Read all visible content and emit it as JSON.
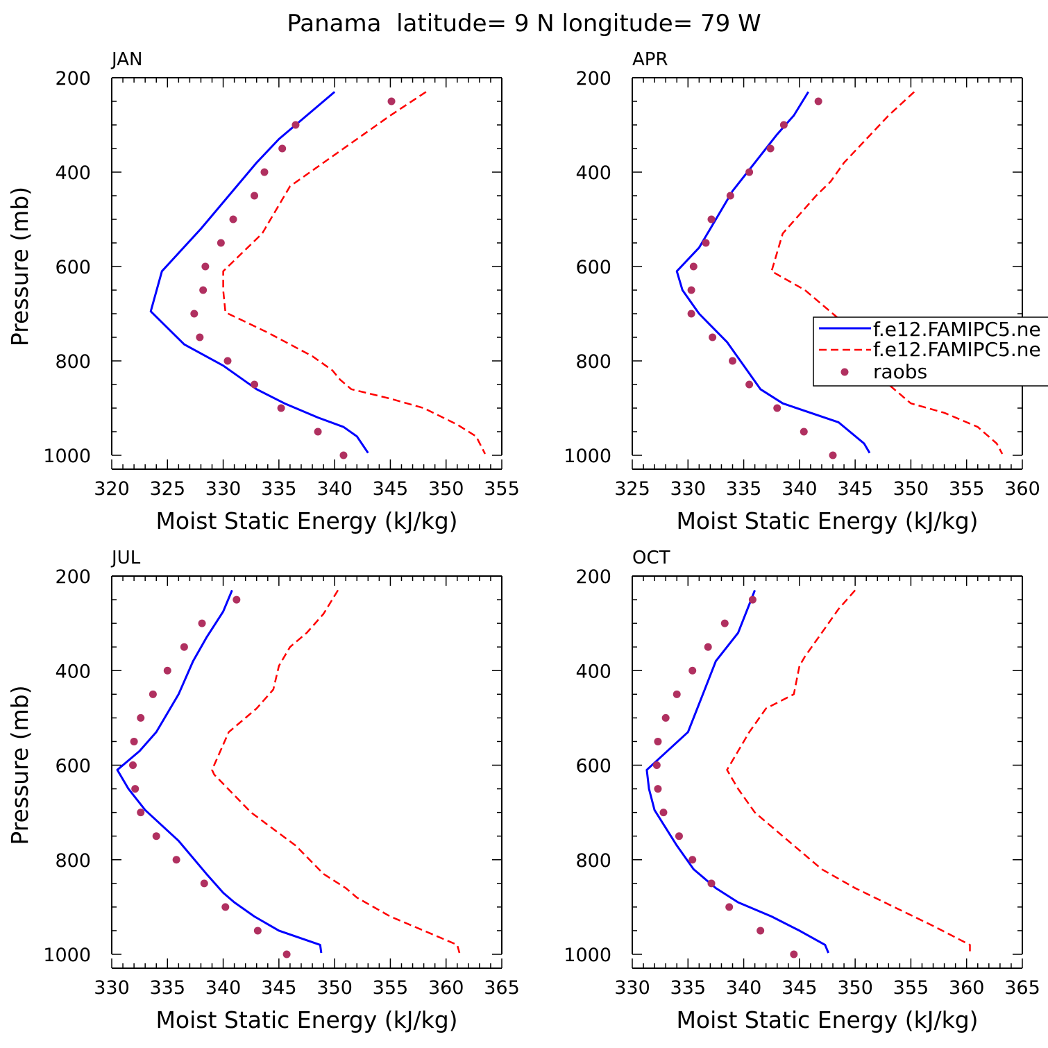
{
  "figure_title": "Panama  latitude= 9 N longitude= 79 W",
  "legend": {
    "entries": [
      {
        "label": "f.e12.FAMIPC5.ne",
        "style": "solid",
        "color": "#0000ff"
      },
      {
        "label": "f.e12.FAMIPC5.ne",
        "style": "dashed",
        "color": "#ff0000"
      },
      {
        "label": "raobs",
        "style": "dot",
        "color": "#b03060"
      }
    ]
  },
  "colors": {
    "model_solid": "#0000ff",
    "model_dashed": "#ff0000",
    "raobs": "#b03060"
  },
  "chart_data": [
    {
      "type": "line",
      "title": "JAN",
      "xlabel": "Moist Static Energy (kJ/kg)",
      "ylabel": "Pressure (mb)",
      "xlim": [
        320,
        355
      ],
      "xticks": [
        320,
        325,
        330,
        335,
        340,
        345,
        350,
        355
      ],
      "ylim": [
        200,
        1000
      ],
      "yticks": [
        200,
        400,
        600,
        800,
        1000
      ],
      "series": [
        {
          "name": "f.e12.FAMIPC5.ne",
          "style": "solid",
          "x": [
            340.0,
            338.0,
            335.0,
            333.0,
            330.5,
            328.0,
            324.5,
            323.5,
            326.5,
            330.0,
            333.0,
            335.5,
            338.5,
            340.8,
            342.0,
            343.0
          ],
          "y": [
            230,
            270,
            330,
            380,
            450,
            520,
            610,
            695,
            765,
            810,
            860,
            890,
            920,
            940,
            960,
            995
          ]
        },
        {
          "name": "f.e12.FAMIPC5.ne",
          "style": "dashed",
          "x": [
            348.2,
            345.0,
            342.0,
            339.0,
            336.0,
            333.5,
            330.0,
            330.0,
            330.2,
            334.0,
            338.0,
            339.8,
            340.5,
            341.5,
            345.0,
            348.0,
            351.0,
            352.7,
            353.5
          ],
          "y": [
            230,
            280,
            330,
            380,
            430,
            530,
            610,
            650,
            697,
            740,
            790,
            820,
            840,
            860,
            880,
            900,
            935,
            960,
            997
          ]
        },
        {
          "name": "raobs",
          "style": "dot",
          "x": [
            345.1,
            336.5,
            335.3,
            333.7,
            332.8,
            330.9,
            329.8,
            328.4,
            328.2,
            327.4,
            327.9,
            330.4,
            332.8,
            335.2,
            338.5,
            340.8
          ],
          "y": [
            250,
            300,
            350,
            400,
            450,
            500,
            550,
            600,
            650,
            700,
            750,
            800,
            850,
            900,
            950,
            1000
          ]
        }
      ]
    },
    {
      "type": "line",
      "title": "APR",
      "xlabel": "Moist Static Energy (kJ/kg)",
      "ylabel": "",
      "xlim": [
        325,
        360
      ],
      "xticks": [
        325,
        330,
        335,
        340,
        345,
        350,
        355,
        360
      ],
      "ylim": [
        200,
        1000
      ],
      "yticks": [
        200,
        400,
        600,
        800,
        1000
      ],
      "series": [
        {
          "name": "f.e12.FAMIPC5.ne",
          "style": "solid",
          "x": [
            340.8,
            339.5,
            338.0,
            336.0,
            334.0,
            332.0,
            331.0,
            329.0,
            329.5,
            331.0,
            333.5,
            335.0,
            336.5,
            338.5,
            341.0,
            343.5,
            345.8,
            346.3
          ],
          "y": [
            230,
            280,
            320,
            380,
            440,
            520,
            560,
            610,
            650,
            700,
            760,
            810,
            860,
            890,
            910,
            930,
            975,
            995
          ]
        },
        {
          "name": "f.e12.FAMIPC5.ne",
          "style": "dashed",
          "x": [
            350.3,
            348.0,
            346.0,
            344.0,
            342.8,
            341.5,
            338.5,
            337.5,
            340.5,
            343.0,
            345.0,
            346.5,
            347.5,
            349.0,
            350.0,
            353.0,
            356.0,
            357.7,
            358.2
          ],
          "y": [
            230,
            280,
            330,
            380,
            420,
            450,
            530,
            610,
            650,
            700,
            740,
            790,
            840,
            870,
            890,
            910,
            940,
            975,
            997
          ]
        },
        {
          "name": "raobs",
          "style": "dot",
          "x": [
            341.7,
            338.6,
            337.4,
            335.5,
            333.8,
            332.1,
            331.6,
            330.5,
            330.3,
            330.3,
            332.2,
            334.0,
            335.5,
            338.0,
            340.4,
            343.0
          ],
          "y": [
            250,
            300,
            350,
            400,
            450,
            500,
            550,
            600,
            650,
            700,
            750,
            800,
            850,
            900,
            950,
            1000
          ]
        }
      ]
    },
    {
      "type": "line",
      "title": "JUL",
      "xlabel": "Moist Static Energy (kJ/kg)",
      "ylabel": "Pressure (mb)",
      "xlim": [
        330,
        365
      ],
      "xticks": [
        330,
        335,
        340,
        345,
        350,
        355,
        360,
        365
      ],
      "ylim": [
        200,
        1000
      ],
      "yticks": [
        200,
        400,
        600,
        800,
        1000
      ],
      "series": [
        {
          "name": "f.e12.FAMIPC5.ne",
          "style": "solid",
          "x": [
            340.8,
            340.0,
            338.5,
            337.3,
            336.0,
            334.0,
            332.5,
            330.5,
            331.5,
            333.0,
            336.0,
            338.5,
            340.0,
            341.0,
            342.8,
            345.0,
            348.7,
            348.8
          ],
          "y": [
            230,
            275,
            330,
            380,
            450,
            530,
            570,
            610,
            650,
            695,
            760,
            830,
            870,
            890,
            920,
            950,
            980,
            997
          ]
        },
        {
          "name": "f.e12.FAMIPC5.ne",
          "style": "dashed",
          "x": [
            350.3,
            349.0,
            347.5,
            346.0,
            345.0,
            344.5,
            343.0,
            340.5,
            339.0,
            339.2,
            342.5,
            346.5,
            349.0,
            351.0,
            352.0,
            355.0,
            358.0,
            361.0,
            361.2
          ],
          "y": [
            230,
            280,
            320,
            350,
            390,
            440,
            480,
            530,
            610,
            620,
            700,
            770,
            830,
            860,
            880,
            920,
            950,
            980,
            997
          ]
        },
        {
          "name": "raobs",
          "style": "dot",
          "x": [
            341.2,
            338.1,
            336.5,
            335.0,
            333.7,
            332.6,
            332.0,
            331.9,
            332.1,
            332.6,
            334.0,
            335.8,
            338.3,
            340.2,
            343.1,
            345.7
          ],
          "y": [
            250,
            300,
            350,
            400,
            450,
            500,
            550,
            600,
            650,
            700,
            750,
            800,
            850,
            900,
            950,
            1000
          ]
        }
      ]
    },
    {
      "type": "line",
      "title": "OCT",
      "xlabel": "Moist Static Energy (kJ/kg)",
      "ylabel": "",
      "xlim": [
        330,
        365
      ],
      "xticks": [
        330,
        335,
        340,
        345,
        350,
        355,
        360,
        365
      ],
      "ylim": [
        200,
        1000
      ],
      "yticks": [
        200,
        400,
        600,
        800,
        1000
      ],
      "series": [
        {
          "name": "f.e12.FAMIPC5.ne",
          "style": "solid",
          "x": [
            341.0,
            340.5,
            339.5,
            337.5,
            336.5,
            335.0,
            331.3,
            331.5,
            332.0,
            334.0,
            335.5,
            337.5,
            339.5,
            342.5,
            345.0,
            347.3,
            347.6
          ],
          "y": [
            230,
            260,
            320,
            380,
            440,
            530,
            610,
            650,
            695,
            770,
            820,
            860,
            890,
            920,
            950,
            980,
            997
          ]
        },
        {
          "name": "f.e12.FAMIPC5.ne",
          "style": "dashed",
          "x": [
            350.0,
            348.5,
            347.0,
            345.5,
            345.0,
            344.5,
            342.0,
            340.5,
            338.5,
            339.5,
            341.0,
            344.5,
            347.0,
            350.0,
            353.5,
            357.0,
            360.3,
            360.3
          ],
          "y": [
            230,
            270,
            320,
            370,
            390,
            450,
            480,
            530,
            610,
            650,
            700,
            770,
            820,
            860,
            900,
            940,
            980,
            997
          ]
        },
        {
          "name": "raobs",
          "style": "dot",
          "x": [
            340.8,
            338.3,
            336.8,
            335.4,
            334.0,
            333.0,
            332.3,
            332.2,
            332.3,
            332.8,
            334.2,
            335.4,
            337.1,
            338.7,
            341.5,
            344.5
          ],
          "y": [
            250,
            300,
            350,
            400,
            450,
            500,
            550,
            600,
            650,
            700,
            750,
            800,
            850,
            900,
            950,
            1000
          ]
        }
      ]
    }
  ]
}
